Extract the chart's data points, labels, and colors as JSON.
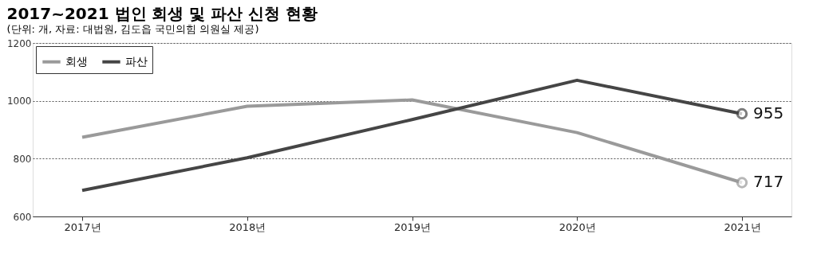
{
  "chart_data": {
    "type": "line",
    "title": "2017~2021 법인 회생 및 파산 신청 현황",
    "subtitle": "(단위: 개, 자료: 대법원, 김도읍 국민의힘 의원실 제공)",
    "categories": [
      "2017년",
      "2018년",
      "2019년",
      "2020년",
      "2021년"
    ],
    "series": [
      {
        "name": "회생",
        "color": "#9a9a9a",
        "values": [
          874,
          981,
          1003,
          890,
          717
        ],
        "value_labels": [
          null,
          null,
          null,
          null,
          "717"
        ]
      },
      {
        "name": "파산",
        "color": "#454545",
        "values": [
          690,
          803,
          935,
          1071,
          955
        ],
        "value_labels": [
          null,
          null,
          null,
          null,
          "955"
        ]
      }
    ],
    "ylim": [
      600,
      1200
    ],
    "yticks": [
      600,
      800,
      1000,
      1200
    ],
    "grid": "y",
    "legend": "top left",
    "line_style": "solid"
  }
}
